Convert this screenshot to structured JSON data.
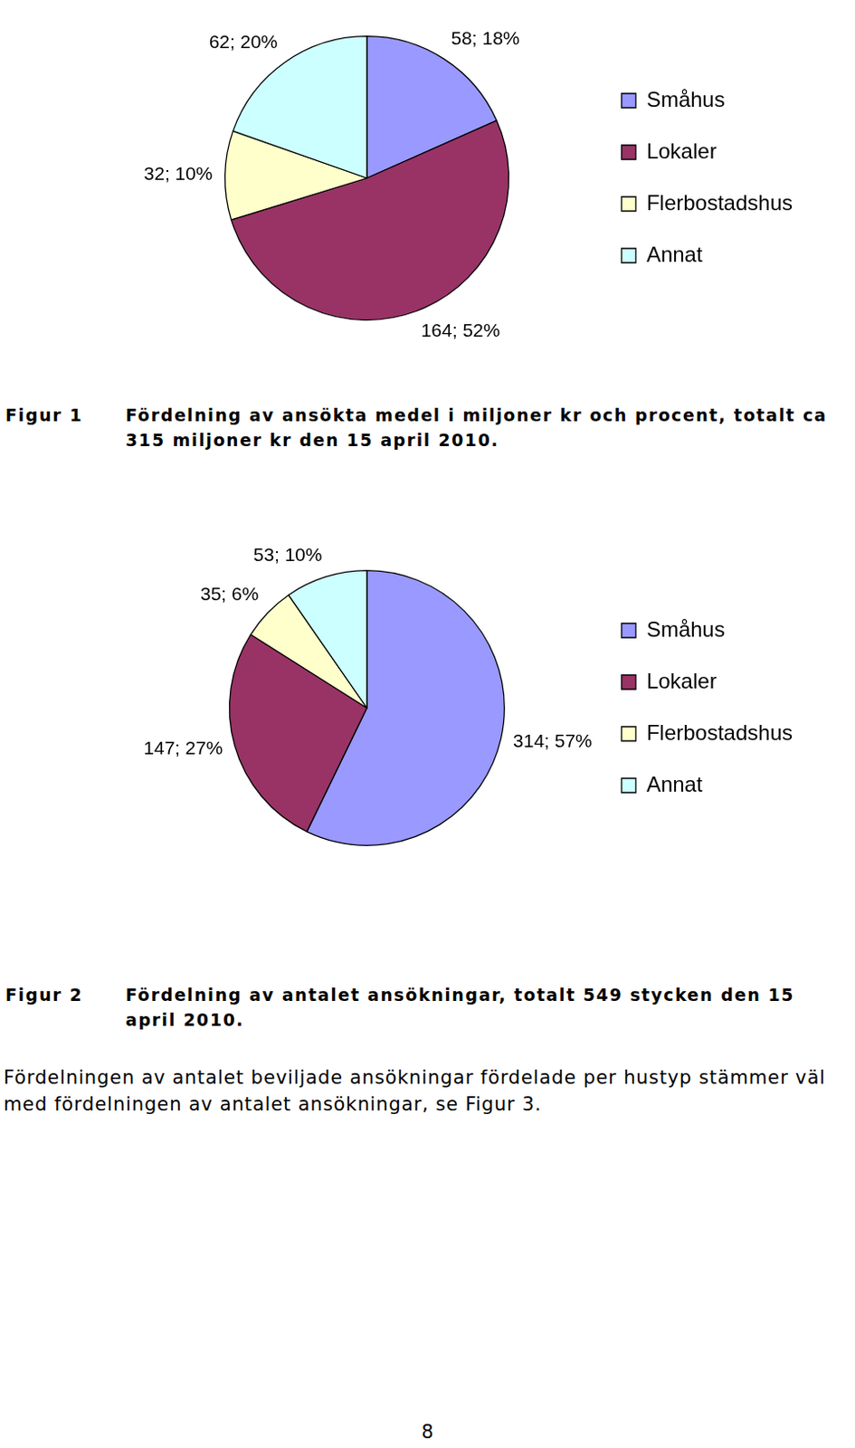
{
  "chart_data": [
    {
      "type": "pie",
      "categories": [
        "Småhus",
        "Lokaler",
        "Flerbostadshus",
        "Annat"
      ],
      "values": [
        58,
        164,
        32,
        62
      ],
      "value_labels": [
        "58; 18%",
        "164; 52%",
        "32; 10%",
        "62; 20%"
      ],
      "colors": [
        "#9999ff",
        "#993366",
        "#ffffcc",
        "#ccffff"
      ],
      "data_labels": true,
      "legend": "right"
    },
    {
      "type": "pie",
      "categories": [
        "Småhus",
        "Lokaler",
        "Flerbostadshus",
        "Annat"
      ],
      "values": [
        314,
        147,
        35,
        53
      ],
      "value_labels": [
        "314; 57%",
        "147; 27%",
        "35; 6%",
        "53; 10%"
      ],
      "colors": [
        "#9999ff",
        "#993366",
        "#ffffcc",
        "#ccffff"
      ],
      "data_labels": true,
      "legend": "right"
    }
  ],
  "figures": [
    {
      "label": "Figur 1",
      "caption": "Fördelning av ansökta medel i miljoner kr och procent, totalt ca 315 miljoner kr den 15 april 2010."
    },
    {
      "label": "Figur 2",
      "caption": "Fördelning av antalet ansökningar, totalt 549 stycken den 15 april 2010."
    }
  ],
  "paragraph": "Fördelningen av antalet beviljade ansökningar fördelade per hustyp stämmer väl med fördelningen av antalet ansökningar, se Figur 3.",
  "page_number": 8
}
